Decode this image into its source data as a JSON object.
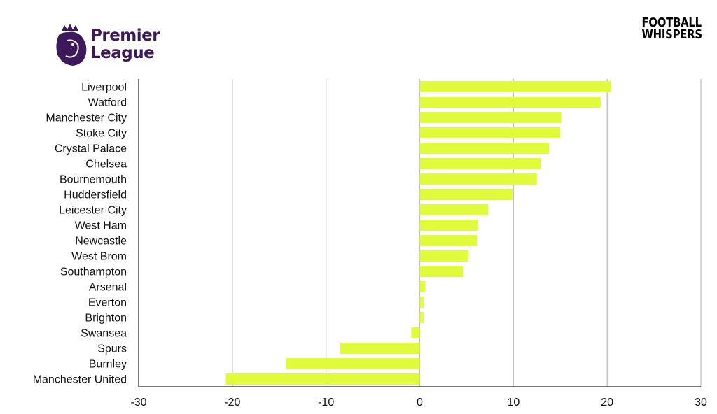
{
  "branding": {
    "league_line1": "Premier",
    "league_line2": "League",
    "publisher_line1": "FOOTBALL",
    "publisher_line2": "WHISPERS",
    "league_logo_icon": "premier-league-lion-icon",
    "league_color": "#3d195b"
  },
  "chart_data": {
    "type": "bar",
    "orientation": "horizontal",
    "title": "",
    "xlabel": "",
    "ylabel": "",
    "xlim": [
      -30,
      30
    ],
    "xticks": [
      -30,
      -20,
      -10,
      0,
      10,
      20,
      30
    ],
    "grid": true,
    "bar_color": "#dffb3b",
    "categories": [
      "Liverpool",
      "Watford",
      "Manchester City",
      "Stoke City",
      "Crystal Palace",
      "Chelsea",
      "Bournemouth",
      "Huddersfield",
      "Leicester City",
      "West Ham",
      "Newcastle",
      "West Brom",
      "Southampton",
      "Arsenal",
      "Everton",
      "Brighton",
      "Swansea",
      "Spurs",
      "Burnley",
      "Manchester United"
    ],
    "values": [
      20.4,
      19.3,
      15.1,
      15.0,
      13.8,
      12.9,
      12.5,
      9.9,
      7.3,
      6.2,
      6.1,
      5.2,
      4.6,
      0.6,
      0.4,
      0.4,
      -0.9,
      -8.5,
      -14.3,
      -20.7
    ]
  }
}
